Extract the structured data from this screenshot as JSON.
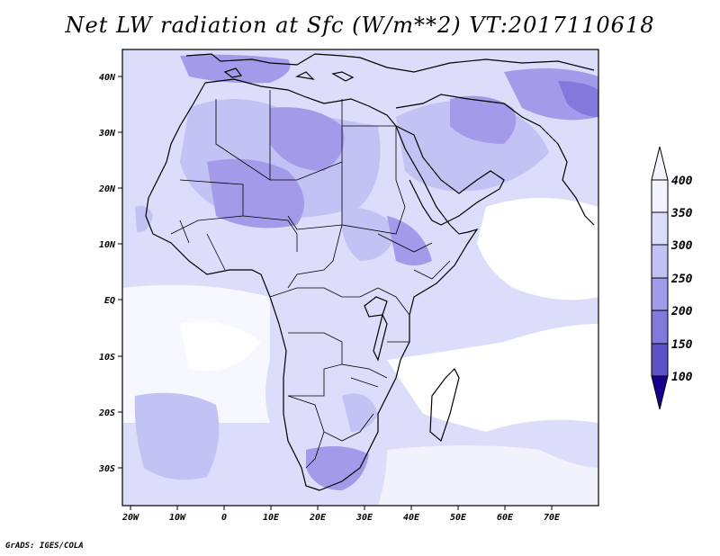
{
  "title": "Net LW radiation at Sfc (W/m**2) VT:2017110618",
  "credit": "GrADS: IGES/COLA",
  "map": {
    "lon_ticks": [
      "20W",
      "10W",
      "0",
      "10E",
      "20E",
      "30E",
      "40E",
      "50E",
      "60E",
      "70E"
    ],
    "lat_ticks": [
      "40N",
      "30N",
      "20N",
      "10N",
      "EQ",
      "10S",
      "20S",
      "30S"
    ]
  },
  "colorbar": {
    "labels": [
      "400",
      "350",
      "300",
      "250",
      "200",
      "150",
      "100"
    ],
    "colors": [
      "#f4f4ff",
      "#dcdcfb",
      "#c2c2f4",
      "#a39bea",
      "#8578dd",
      "#5f50c8",
      "#2e1aa7",
      "#160090"
    ]
  },
  "colors": {
    "ocean": "#ffffff",
    "field_light": "#dcdcfb",
    "field_mid": "#c2c2f4",
    "field_dark": "#a39bea",
    "field_darker": "#8578dd",
    "coast": "#000000"
  }
}
